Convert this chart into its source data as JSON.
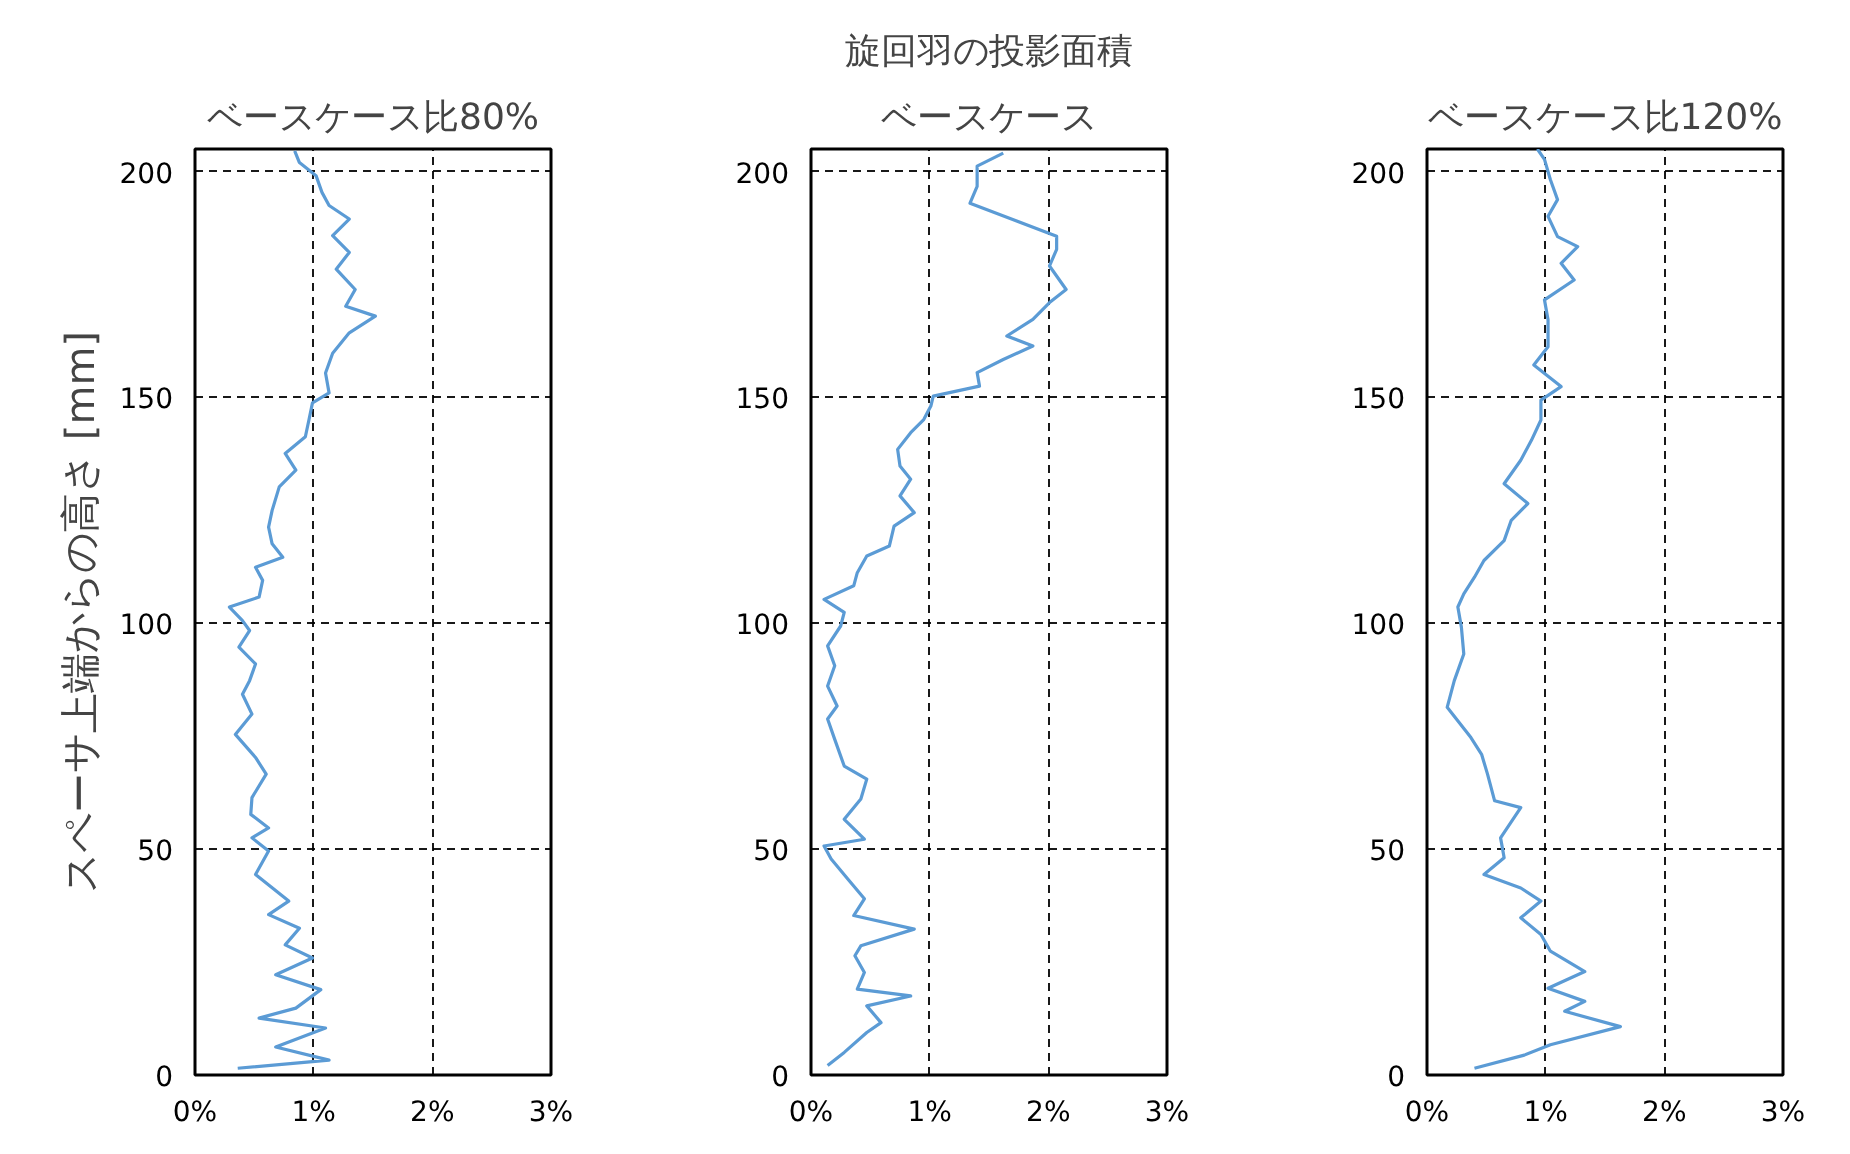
{
  "chart_data": [
    {
      "type": "line",
      "title": "ベースケース比80%",
      "ylabel": "スペーサ上端からの高さ [mm]",
      "xlim": [
        0,
        3
      ],
      "ylim": [
        0,
        205
      ],
      "xticks": [
        {
          "value": 0,
          "label": "0%"
        },
        {
          "value": 1,
          "label": "1%"
        },
        {
          "value": 2,
          "label": "2%"
        },
        {
          "value": 3,
          "label": "3%"
        }
      ],
      "yticks": [
        0,
        50,
        100,
        150,
        200
      ],
      "grid": true,
      "marker": "none",
      "line_style": "solid",
      "series": [
        {
          "color": "#5b9bd5",
          "x": [
            0.36,
            1.13,
            0.68,
            1.1,
            0.54,
            0.85,
            1.06,
            0.68,
            0.99,
            0.76,
            0.88,
            0.62,
            0.79,
            0.51,
            0.62,
            0.48,
            0.62,
            0.47,
            0.48,
            0.6,
            0.51,
            0.34,
            0.48,
            0.4,
            0.46,
            0.51,
            0.37,
            0.46,
            0.4,
            0.29,
            0.54,
            0.57,
            0.51,
            0.74,
            0.65,
            0.62,
            0.65,
            0.71,
            0.85,
            0.76,
            0.93,
            0.96,
            0.99,
            1.13,
            1.1,
            1.16,
            1.3,
            1.52,
            1.27,
            1.35,
            1.19,
            1.3,
            1.16,
            1.3,
            1.13,
            1.07,
            1.02,
            0.88,
            0.84
          ],
          "values": [
            1.5,
            3.3,
            6.2,
            10.4,
            12.6,
            14.8,
            18.9,
            22.2,
            25.9,
            28.8,
            32.5,
            35.5,
            38.5,
            44.4,
            49.6,
            52.5,
            54.7,
            57.7,
            61.4,
            66.6,
            70.3,
            75.4,
            79.9,
            84.3,
            87.3,
            91.0,
            94.7,
            98.4,
            100.6,
            103.6,
            105.8,
            109.5,
            112.4,
            114.6,
            117.6,
            121.3,
            125.0,
            130.2,
            133.9,
            137.6,
            141.3,
            145.0,
            148.8,
            151.0,
            155.4,
            159.8,
            164.3,
            168.0,
            170.2,
            173.9,
            178.4,
            182.1,
            185.8,
            189.5,
            192.5,
            195.4,
            199.1,
            202.0,
            204.6
          ]
        }
      ]
    },
    {
      "type": "line",
      "title": "旋回羽の投影面積",
      "subtitle": "ベースケース",
      "xlim": [
        0,
        3
      ],
      "ylim": [
        0,
        205
      ],
      "xticks": [
        {
          "value": 0,
          "label": "0%"
        },
        {
          "value": 1,
          "label": "1%"
        },
        {
          "value": 2,
          "label": "2%"
        },
        {
          "value": 3,
          "label": "3%"
        }
      ],
      "yticks": [
        0,
        50,
        100,
        150,
        200
      ],
      "grid": true,
      "marker": "none",
      "line_style": "solid",
      "series": [
        {
          "color": "#5b9bd5",
          "x": [
            0.14,
            0.28,
            0.47,
            0.59,
            0.47,
            0.84,
            0.39,
            0.45,
            0.37,
            0.42,
            0.87,
            0.36,
            0.45,
            0.31,
            0.17,
            0.11,
            0.45,
            0.28,
            0.42,
            0.47,
            0.28,
            0.2,
            0.14,
            0.22,
            0.14,
            0.2,
            0.14,
            0.25,
            0.28,
            0.11,
            0.36,
            0.39,
            0.47,
            0.66,
            0.7,
            0.87,
            0.75,
            0.84,
            0.75,
            0.73,
            0.84,
            0.95,
            1.01,
            1.03,
            1.42,
            1.4,
            1.62,
            1.87,
            1.65,
            1.87,
            2.01,
            2.15,
            2.01,
            2.07,
            2.07,
            1.7,
            1.34,
            1.4,
            1.4,
            1.62
          ],
          "values": [
            2.1,
            5.0,
            9.4,
            11.6,
            15.3,
            17.5,
            19.0,
            22.7,
            26.4,
            28.6,
            32.3,
            35.3,
            39.0,
            43.4,
            47.8,
            50.7,
            52.2,
            56.6,
            61.1,
            65.5,
            68.4,
            74.3,
            78.8,
            81.7,
            86.1,
            90.6,
            95.0,
            99.4,
            102.4,
            105.3,
            108.3,
            111.2,
            114.9,
            117.1,
            121.5,
            124.5,
            128.2,
            131.9,
            134.8,
            138.5,
            142.2,
            145.1,
            148.1,
            150.3,
            152.5,
            155.5,
            158.4,
            161.4,
            163.6,
            167.3,
            171.0,
            173.9,
            179.1,
            182.8,
            185.7,
            189.4,
            193.0,
            196.7,
            201.2,
            204.1
          ]
        }
      ]
    },
    {
      "type": "line",
      "title": "ベースケース比120%",
      "xlim": [
        0,
        3
      ],
      "ylim": [
        0,
        205
      ],
      "xticks": [
        {
          "value": 0,
          "label": "0%"
        },
        {
          "value": 1,
          "label": "1%"
        },
        {
          "value": 2,
          "label": "2%"
        },
        {
          "value": 3,
          "label": "3%"
        }
      ],
      "yticks": [
        0,
        50,
        100,
        150,
        200
      ],
      "grid": true,
      "marker": "none",
      "line_style": "solid",
      "series": [
        {
          "color": "#5b9bd5",
          "x": [
            0.4,
            0.82,
            1.04,
            1.63,
            1.16,
            1.33,
            1.02,
            1.33,
            1.04,
            0.96,
            0.79,
            0.96,
            0.79,
            0.48,
            0.65,
            0.62,
            0.79,
            0.57,
            0.51,
            0.46,
            0.37,
            0.17,
            0.23,
            0.31,
            0.29,
            0.26,
            0.31,
            0.4,
            0.48,
            0.65,
            0.71,
            0.85,
            0.65,
            0.79,
            0.88,
            0.96,
            0.96,
            1.13,
            0.9,
            1.02,
            1.02,
            0.99,
            1.24,
            1.13,
            1.27,
            1.1,
            1.02,
            1.1,
            1.04,
            0.99,
            0.93
          ],
          "values": [
            1.5,
            4.4,
            6.7,
            10.7,
            14.1,
            16.3,
            19.2,
            22.9,
            27.4,
            31.1,
            34.8,
            38.5,
            41.4,
            44.4,
            48.1,
            52.5,
            59.2,
            60.7,
            66.6,
            71.0,
            74.7,
            81.4,
            87.3,
            93.2,
            99.1,
            103.6,
            106.5,
            110.2,
            113.9,
            118.3,
            122.8,
            126.5,
            130.9,
            136.1,
            140.5,
            145.0,
            149.4,
            152.4,
            157.2,
            161.2,
            167.2,
            171.6,
            176.0,
            179.7,
            183.4,
            185.6,
            190.1,
            193.8,
            198.2,
            202.7,
            205.0
          ]
        }
      ]
    }
  ]
}
